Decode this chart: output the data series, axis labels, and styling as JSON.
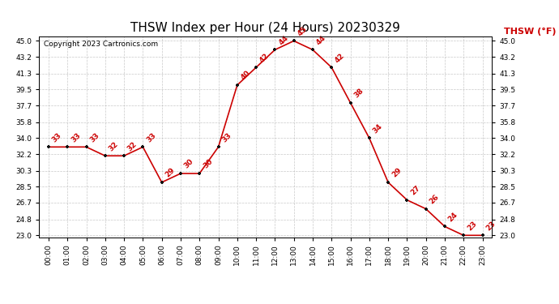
{
  "title": "THSW Index per Hour (24 Hours) 20230329",
  "copyright": "Copyright 2023 Cartronics.com",
  "legend_label": "THSW (°F)",
  "hours": [
    0,
    1,
    2,
    3,
    4,
    5,
    6,
    7,
    8,
    9,
    10,
    11,
    12,
    13,
    14,
    15,
    16,
    17,
    18,
    19,
    20,
    21,
    22,
    23
  ],
  "x_labels": [
    "00:00",
    "01:00",
    "02:00",
    "03:00",
    "04:00",
    "05:00",
    "06:00",
    "07:00",
    "08:00",
    "09:00",
    "10:00",
    "11:00",
    "12:00",
    "13:00",
    "14:00",
    "15:00",
    "16:00",
    "17:00",
    "18:00",
    "19:00",
    "20:00",
    "21:00",
    "22:00",
    "23:00"
  ],
  "values": [
    33,
    33,
    33,
    32,
    32,
    33,
    29,
    30,
    30,
    33,
    40,
    42,
    44,
    45,
    44,
    42,
    38,
    34,
    29,
    27,
    26,
    24,
    23,
    23
  ],
  "line_color": "#cc0000",
  "marker_color": "#111111",
  "label_color": "#cc0000",
  "grid_color": "#bbbbbb",
  "background_color": "#ffffff",
  "title_fontsize": 11,
  "copyright_fontsize": 6.5,
  "legend_fontsize": 8,
  "label_fontsize": 6.5,
  "tick_fontsize": 6.5,
  "ytick_values": [
    23.0,
    24.8,
    26.7,
    28.5,
    30.3,
    32.2,
    34.0,
    35.8,
    37.7,
    39.5,
    41.3,
    43.2,
    45.0
  ],
  "ymin": 23.0,
  "ymax": 45.0
}
